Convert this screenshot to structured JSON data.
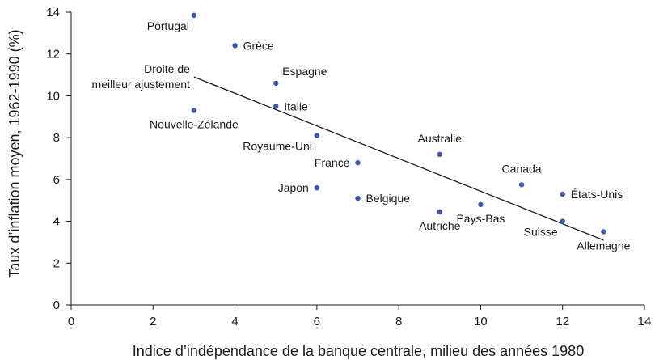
{
  "chart_data": {
    "type": "scatter",
    "title": "",
    "xlabel": "Indice d’indépendance de la banque centrale, milieu des années 1980",
    "ylabel": "Taux d’inflation moyen, 1962-1990 (%)",
    "xlim": [
      0,
      14
    ],
    "ylim": [
      0,
      14
    ],
    "xticks": [
      0,
      2,
      4,
      6,
      8,
      10,
      12,
      14
    ],
    "yticks": [
      0,
      2,
      4,
      6,
      8,
      10,
      12,
      14
    ],
    "grid": false,
    "point_color": "#3f5aa8",
    "line_color": "#1a1a1a",
    "points": [
      {
        "label": "Portugal",
        "x": 3,
        "y": 13.85,
        "label_pos": "below-left"
      },
      {
        "label": "Grèce",
        "x": 4,
        "y": 12.4,
        "label_pos": "right"
      },
      {
        "label": "Espagne",
        "x": 5,
        "y": 10.6,
        "label_pos": "upper-right"
      },
      {
        "label": "Italie",
        "x": 5,
        "y": 9.5,
        "label_pos": "right"
      },
      {
        "label": "Nouvelle-Zélande",
        "x": 3,
        "y": 9.3,
        "label_pos": "below"
      },
      {
        "label": "Royaume-Uni",
        "x": 6,
        "y": 8.1,
        "label_pos": "below-left"
      },
      {
        "label": "France",
        "x": 7,
        "y": 6.8,
        "label_pos": "left"
      },
      {
        "label": "Japon",
        "x": 6,
        "y": 5.6,
        "label_pos": "left"
      },
      {
        "label": "Belgique",
        "x": 7,
        "y": 5.1,
        "label_pos": "right"
      },
      {
        "label": "Australie",
        "x": 9,
        "y": 7.2,
        "label_pos": "above"
      },
      {
        "label": "Autriche",
        "x": 9,
        "y": 4.45,
        "label_pos": "below"
      },
      {
        "label": "Pays-Bas",
        "x": 10,
        "y": 4.8,
        "label_pos": "below"
      },
      {
        "label": "Canada",
        "x": 11,
        "y": 5.75,
        "label_pos": "above"
      },
      {
        "label": "États-Unis",
        "x": 12,
        "y": 5.3,
        "label_pos": "right"
      },
      {
        "label": "Suisse",
        "x": 12,
        "y": 4.0,
        "label_pos": "below-left"
      },
      {
        "label": "Allemagne",
        "x": 13,
        "y": 3.5,
        "label_pos": "below"
      }
    ],
    "fit_line": {
      "label_lines": [
        "Droite de",
        "meilleur ajustement"
      ],
      "x1": 3,
      "y1": 10.9,
      "x2": 13,
      "y2": 3.1
    }
  }
}
